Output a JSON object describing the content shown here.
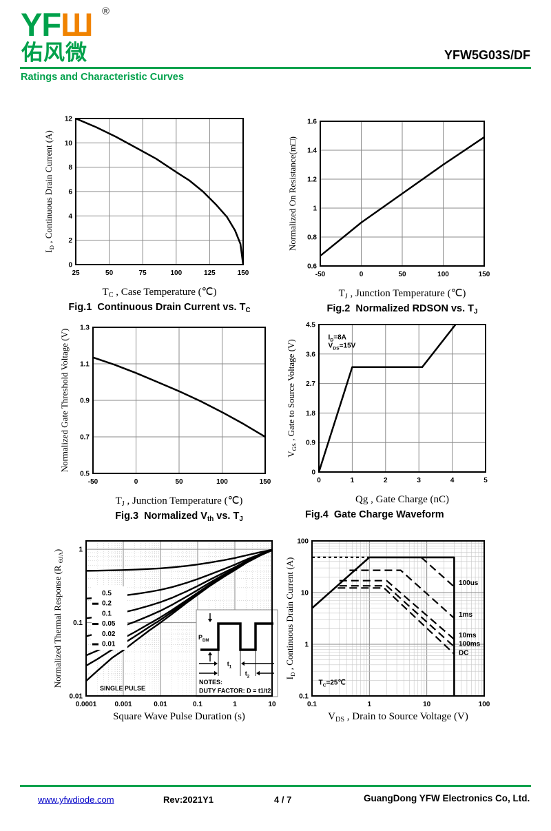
{
  "page": {
    "part_number": "YFW5G03S/DF",
    "section_title": "Ratings and Characteristic Curves"
  },
  "logo": {
    "text": "YF",
    "glyph": "Ш",
    "registered": "®",
    "chinese": "佑风微"
  },
  "colors": {
    "brand_green": "#00A14B",
    "brand_orange": "#F08300",
    "link_blue": "#0000C8",
    "curve_black": "#000000",
    "grid_major": "#8a8a8a",
    "grid_minor": "#c6c6c6"
  },
  "footer": {
    "website": "www.yfwdiode.com",
    "revision": "Rev:2021Y1",
    "page_number": "4 / 7",
    "company": "GuangDong YFW Electronics Co, Ltd."
  },
  "chart_data": [
    {
      "id": "fig1-chart",
      "type": "line",
      "caption": [
        {
          "t": "Fig.1  Continuous Drain Current vs. T"
        },
        {
          "t": "C",
          "sub": true
        }
      ],
      "xaxis": {
        "scale": "linear",
        "min": 25,
        "max": 150,
        "ticks": [
          25,
          50,
          75,
          100,
          125,
          150
        ]
      },
      "yaxis": {
        "scale": "linear",
        "min": 0,
        "max": 12,
        "ticks": [
          0,
          2,
          4,
          6,
          8,
          10,
          12
        ]
      },
      "xlabel": [
        {
          "t": "T"
        },
        {
          "t": "C",
          "sub": true
        },
        {
          "t": " , Case Temperature (℃)"
        }
      ],
      "ylabel": [
        {
          "t": "I"
        },
        {
          "t": "D",
          "sub": true
        },
        {
          "t": " , Continuous Drain Current (A)"
        }
      ],
      "series": [
        {
          "name": "drain-current-vs-tc",
          "points": [
            [
              25,
              12
            ],
            [
              40,
              11.3
            ],
            [
              55,
              10.5
            ],
            [
              70,
              9.6
            ],
            [
              85,
              8.7
            ],
            [
              100,
              7.6
            ],
            [
              110,
              6.9
            ],
            [
              120,
              6.0
            ],
            [
              130,
              4.9
            ],
            [
              138,
              3.9
            ],
            [
              144,
              2.8
            ],
            [
              148,
              1.7
            ],
            [
              150,
              0
            ]
          ]
        }
      ]
    },
    {
      "id": "fig2-chart",
      "type": "line",
      "caption": [
        {
          "t": "Fig.2  Normalized RDSON vs. T"
        },
        {
          "t": "J",
          "sub": true
        }
      ],
      "xaxis": {
        "scale": "linear",
        "min": -50,
        "max": 150,
        "ticks": [
          -50,
          0,
          50,
          100,
          150
        ]
      },
      "yaxis": {
        "scale": "linear",
        "min": 0.6,
        "max": 1.6,
        "ticks": [
          0.6,
          0.8,
          1,
          1.2,
          1.4,
          1.6
        ]
      },
      "xlabel": [
        {
          "t": "T"
        },
        {
          "t": "J",
          "sub": true
        },
        {
          "t": " , Junction Temperature (℃)"
        }
      ],
      "ylabel": [
        {
          "t": "Normalized On Resistance(m□)"
        }
      ],
      "series": [
        {
          "name": "rdson-vs-tj",
          "points": [
            [
              -50,
              0.67
            ],
            [
              0,
              0.9
            ],
            [
              50,
              1.1
            ],
            [
              100,
              1.3
            ],
            [
              150,
              1.49
            ]
          ]
        }
      ]
    },
    {
      "id": "fig3-chart",
      "type": "line",
      "caption": [
        {
          "t": "Fig.3  Normalized V"
        },
        {
          "t": "th",
          "sub": true
        },
        {
          "t": " vs. T"
        },
        {
          "t": "J",
          "sub": true
        }
      ],
      "xaxis": {
        "scale": "linear",
        "min": -50,
        "max": 150,
        "ticks": [
          -50,
          0,
          50,
          100,
          150
        ]
      },
      "yaxis": {
        "scale": "linear",
        "min": 0.5,
        "max": 1.3,
        "ticks": [
          0.5,
          0.7,
          0.9,
          1.1,
          1.3
        ]
      },
      "xlabel": [
        {
          "t": "T"
        },
        {
          "t": "J",
          "sub": true
        },
        {
          "t": " , Junction Temperature (℃)"
        }
      ],
      "ylabel": [
        {
          "t": "Normalized Gate Threshold Voltage (V)"
        }
      ],
      "series": [
        {
          "name": "vth-vs-tj",
          "points": [
            [
              -50,
              1.135
            ],
            [
              -25,
              1.095
            ],
            [
              0,
              1.05
            ],
            [
              25,
              1.0
            ],
            [
              50,
              0.95
            ],
            [
              75,
              0.895
            ],
            [
              100,
              0.835
            ],
            [
              125,
              0.77
            ],
            [
              150,
              0.7
            ]
          ]
        }
      ]
    },
    {
      "id": "fig4-chart",
      "type": "line",
      "caption": [
        {
          "t": "Fig.4  Gate Charge Waveform"
        }
      ],
      "xaxis": {
        "scale": "linear",
        "min": 0,
        "max": 5,
        "ticks": [
          0,
          1,
          2,
          3,
          4,
          5
        ]
      },
      "yaxis": {
        "scale": "linear",
        "min": 0,
        "max": 4.5,
        "ticks": [
          0,
          0.9,
          1.8,
          2.7,
          3.6,
          4.5
        ]
      },
      "xlabel": [
        {
          "t": "Qg , Gate Charge (nC)"
        }
      ],
      "ylabel": [
        {
          "t": "V"
        },
        {
          "t": "GS",
          "sub": true
        },
        {
          "t": " , Gate to Source Voltage (V)"
        }
      ],
      "series": [
        {
          "name": "gate-charge-waveform",
          "points": [
            [
              0,
              0
            ],
            [
              1,
              3.2
            ],
            [
              3.1,
              3.2
            ],
            [
              4.1,
              4.5
            ]
          ]
        }
      ],
      "annotations": [
        {
          "x": 0.28,
          "y": 4.05,
          "anchor": "start",
          "lines": [
            [
              {
                "t": "I"
              },
              {
                "t": "D",
                "sub": true
              },
              {
                "t": "=8A"
              }
            ],
            [
              {
                "t": "V"
              },
              {
                "t": "DS",
                "sub": true
              },
              {
                "t": "=15V"
              }
            ]
          ]
        }
      ]
    },
    {
      "id": "fig5-chart",
      "type": "line",
      "xaxis": {
        "scale": "log",
        "min": 0.0001,
        "max": 10,
        "ticks": [
          0.0001,
          0.001,
          0.01,
          0.1,
          1,
          10
        ]
      },
      "yaxis": {
        "scale": "log",
        "min": 0.01,
        "max": 1.3,
        "ticks": [
          0.01,
          0.1,
          1
        ]
      },
      "minor_dotted": true,
      "xlabel": [
        {
          "t": "Square Wave Pulse Duration (s)"
        }
      ],
      "ylabel": [
        {
          "t": "Normalized Thermal Response (R "
        },
        {
          "t": "ΘJA",
          "sub": true
        },
        {
          "t": ")"
        }
      ],
      "duties": [
        0.5,
        0.2,
        0.1,
        0.05,
        0.02,
        0.01
      ],
      "single_pulse_points": [
        [
          0.0001,
          0.016
        ],
        [
          0.0002,
          0.022
        ],
        [
          0.0005,
          0.033
        ],
        [
          0.001,
          0.042
        ],
        [
          0.002,
          0.055
        ],
        [
          0.005,
          0.078
        ],
        [
          0.01,
          0.1
        ],
        [
          0.02,
          0.13
        ],
        [
          0.05,
          0.185
        ],
        [
          0.1,
          0.24
        ],
        [
          0.2,
          0.31
        ],
        [
          0.5,
          0.42
        ],
        [
          1,
          0.52
        ],
        [
          2,
          0.65
        ],
        [
          5,
          0.83
        ],
        [
          10,
          0.97
        ]
      ],
      "legend": {
        "labels": [
          "0.5",
          "0.2",
          "0.1",
          "0.05",
          "0.02",
          "0.01"
        ]
      },
      "single_pulse_label": "SINGLE PULSE",
      "inset": {
        "pdm": [
          {
            "t": "P"
          },
          {
            "t": "DM",
            "sub": true
          }
        ],
        "t1": [
          {
            "t": "t"
          },
          {
            "t": "1",
            "sub": true
          }
        ],
        "t2": [
          {
            "t": "t"
          },
          {
            "t": "2",
            "sub": true
          }
        ],
        "notes": [
          "NOTES:",
          "DUTY FACTOR: D = t1/t2"
        ]
      }
    },
    {
      "id": "fig6-chart",
      "type": "line",
      "xaxis": {
        "scale": "log",
        "min": 0.1,
        "max": 100,
        "ticks": [
          0.1,
          1,
          10,
          100
        ]
      },
      "yaxis": {
        "scale": "log",
        "min": 0.1,
        "max": 100,
        "ticks": [
          0.1,
          1,
          10,
          100
        ]
      },
      "xlabel": [
        {
          "t": "V"
        },
        {
          "t": "DS",
          "sub": true
        },
        {
          "t": " , Drain to Source Voltage (V)"
        }
      ],
      "ylabel": [
        {
          "t": "I"
        },
        {
          "t": "D",
          "sub": true
        },
        {
          "t": " , Continuous Drain Current  (A)"
        }
      ],
      "series": [
        {
          "name": "soa-boundary",
          "width": 2.6,
          "points": [
            [
              0.1,
              5
            ],
            [
              1,
              48
            ],
            [
              30,
              48
            ],
            [
              30,
              0.1
            ]
          ]
        },
        {
          "name": "pulse-100us-left",
          "dash": "4,4",
          "width": 2.2,
          "points": [
            [
              0.1,
              48
            ],
            [
              1,
              48
            ]
          ]
        },
        {
          "name": "pulse-100us",
          "dash": "11,6",
          "width": 2.2,
          "points": [
            [
              8,
              48
            ],
            [
              30,
              13
            ]
          ]
        },
        {
          "name": "pulse-1ms",
          "dash": "11,6",
          "width": 2.2,
          "points": [
            [
              0.45,
              27
            ],
            [
              3.5,
              27
            ],
            [
              30,
              3.2
            ]
          ]
        },
        {
          "name": "pulse-10ms",
          "dash": "11,6",
          "width": 2.2,
          "points": [
            [
              0.3,
              17
            ],
            [
              2,
              17
            ],
            [
              30,
              1.25
            ]
          ]
        },
        {
          "name": "pulse-100ms",
          "dash": "11,6",
          "width": 2.2,
          "points": [
            [
              0.3,
              13.5
            ],
            [
              2,
              13.5
            ],
            [
              30,
              0.9
            ]
          ]
        },
        {
          "name": "pulse-dc",
          "dash": "11,6",
          "width": 2.2,
          "points": [
            [
              0.28,
              12.3
            ],
            [
              1.8,
              12.3
            ],
            [
              30,
              0.65
            ]
          ]
        }
      ],
      "annotations": [
        {
          "x": 36,
          "y": 14,
          "anchor": "start",
          "lines": [
            [
              {
                "t": "100us"
              }
            ]
          ]
        },
        {
          "x": 36,
          "y": 3.4,
          "anchor": "start",
          "lines": [
            [
              {
                "t": "1ms"
              }
            ]
          ]
        },
        {
          "x": 36,
          "y": 1.35,
          "anchor": "start",
          "lines": [
            [
              {
                "t": "10ms"
              }
            ]
          ]
        },
        {
          "x": 36,
          "y": 0.93,
          "anchor": "start",
          "lines": [
            [
              {
                "t": "100ms"
              }
            ]
          ]
        },
        {
          "x": 36,
          "y": 0.62,
          "anchor": "start",
          "lines": [
            [
              {
                "t": "DC"
              }
            ]
          ]
        },
        {
          "x": 0.13,
          "y": 0.165,
          "anchor": "start",
          "lines": [
            [
              {
                "t": "T"
              },
              {
                "t": "C",
                "sub": true
              },
              {
                "t": "=25℃"
              }
            ]
          ]
        }
      ]
    }
  ]
}
